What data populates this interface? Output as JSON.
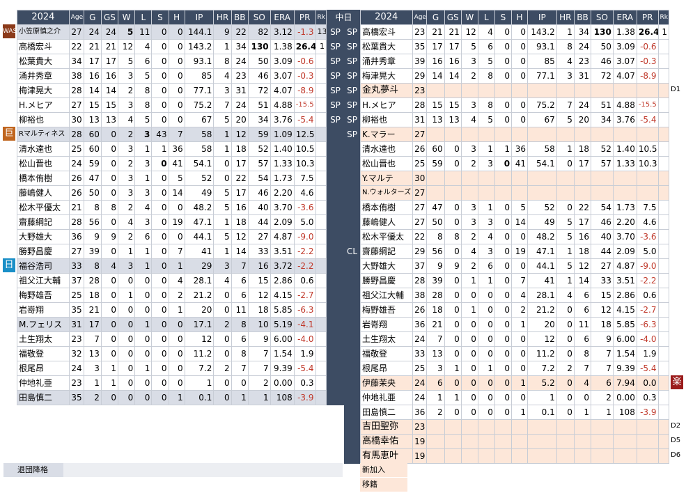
{
  "left": {
    "title": "2024",
    "headers": [
      "Age",
      "G",
      "GS",
      "W",
      "L",
      "S",
      "H",
      "IP",
      "HR",
      "BB",
      "SO",
      "ERA",
      "PR",
      "Rk"
    ],
    "rows": [
      {
        "name": "小笠原慎之介",
        "vals": [
          "27",
          "24",
          "24",
          "5",
          "11",
          "0",
          "0",
          "144.1",
          "9",
          "22",
          "82",
          "3.12",
          "-1.3",
          "13"
        ],
        "style": "grey",
        "bold": [
          4
        ],
        "neg": true,
        "small": true
      },
      {
        "name": "高橋宏斗",
        "vals": [
          "22",
          "21",
          "21",
          "12",
          "4",
          "0",
          "0",
          "143.2",
          "1",
          "34",
          "130",
          "1.38",
          "26.4",
          "1"
        ],
        "style": "",
        "bold": [
          11,
          13
        ]
      },
      {
        "name": "松葉貴大",
        "vals": [
          "34",
          "17",
          "17",
          "5",
          "6",
          "0",
          "0",
          "93.1",
          "8",
          "24",
          "50",
          "3.09",
          "-0.6",
          ""
        ],
        "style": "",
        "neg": true
      },
      {
        "name": "涌井秀章",
        "vals": [
          "38",
          "16",
          "16",
          "3",
          "5",
          "0",
          "0",
          "85",
          "4",
          "23",
          "46",
          "3.07",
          "-0.3",
          ""
        ],
        "style": "",
        "neg": true
      },
      {
        "name": "梅津晃大",
        "vals": [
          "28",
          "14",
          "14",
          "2",
          "8",
          "0",
          "0",
          "77.1",
          "3",
          "31",
          "72",
          "4.07",
          "-8.9",
          ""
        ],
        "style": "",
        "neg": true
      },
      {
        "name": "H.メヒア",
        "vals": [
          "27",
          "15",
          "15",
          "3",
          "8",
          "0",
          "0",
          "75.2",
          "7",
          "24",
          "51",
          "4.88",
          "-15.5",
          ""
        ],
        "style": "",
        "neg": true,
        "smallpr": true
      },
      {
        "name": "柳裕也",
        "vals": [
          "30",
          "13",
          "13",
          "4",
          "5",
          "0",
          "0",
          "67",
          "5",
          "20",
          "34",
          "3.76",
          "-5.4",
          ""
        ],
        "style": "",
        "neg": true
      },
      {
        "name": "Rマルティネス",
        "vals": [
          "28",
          "60",
          "0",
          "2",
          "3",
          "43",
          "7",
          "58",
          "1",
          "12",
          "59",
          "1.09",
          "12.5",
          ""
        ],
        "style": "grey",
        "bold": [
          5
        ],
        "small": true
      },
      {
        "name": "清水達也",
        "vals": [
          "25",
          "60",
          "0",
          "3",
          "1",
          "1",
          "36",
          "58",
          "1",
          "18",
          "52",
          "1.40",
          "10.5",
          ""
        ],
        "style": ""
      },
      {
        "name": "松山晋也",
        "vals": [
          "24",
          "59",
          "0",
          "2",
          "3",
          "0",
          "41",
          "54.1",
          "0",
          "17",
          "57",
          "1.33",
          "10.3",
          ""
        ],
        "style": "",
        "bold": [
          6
        ]
      },
      {
        "name": "橋本侑樹",
        "vals": [
          "26",
          "47",
          "0",
          "3",
          "1",
          "0",
          "5",
          "52",
          "0",
          "22",
          "54",
          "1.73",
          "7.5",
          ""
        ],
        "style": ""
      },
      {
        "name": "藤嶋健人",
        "vals": [
          "26",
          "50",
          "0",
          "3",
          "3",
          "0",
          "14",
          "49",
          "5",
          "17",
          "46",
          "2.20",
          "4.6",
          ""
        ],
        "style": ""
      },
      {
        "name": "松木平優太",
        "vals": [
          "21",
          "8",
          "8",
          "2",
          "4",
          "0",
          "0",
          "48.2",
          "5",
          "16",
          "40",
          "3.70",
          "-3.6",
          ""
        ],
        "style": "",
        "neg": true
      },
      {
        "name": "齋藤綱記",
        "vals": [
          "28",
          "56",
          "0",
          "4",
          "3",
          "0",
          "19",
          "47.1",
          "1",
          "18",
          "44",
          "2.09",
          "5.0",
          ""
        ],
        "style": ""
      },
      {
        "name": "大野雄大",
        "vals": [
          "36",
          "9",
          "9",
          "2",
          "6",
          "0",
          "0",
          "44.1",
          "5",
          "12",
          "27",
          "4.87",
          "-9.0",
          ""
        ],
        "style": "",
        "neg": true
      },
      {
        "name": "勝野昌慶",
        "vals": [
          "27",
          "39",
          "0",
          "1",
          "1",
          "0",
          "7",
          "41",
          "1",
          "14",
          "33",
          "3.51",
          "-2.2",
          ""
        ],
        "style": "",
        "neg": true
      },
      {
        "name": "福谷浩司",
        "vals": [
          "33",
          "8",
          "4",
          "3",
          "1",
          "0",
          "1",
          "29",
          "3",
          "7",
          "16",
          "3.72",
          "-2.2",
          ""
        ],
        "style": "grey",
        "neg": true
      },
      {
        "name": "祖父江大輔",
        "vals": [
          "37",
          "28",
          "0",
          "0",
          "0",
          "0",
          "4",
          "28.1",
          "4",
          "6",
          "15",
          "2.86",
          "0.6",
          ""
        ],
        "style": ""
      },
      {
        "name": "梅野雄吾",
        "vals": [
          "25",
          "18",
          "0",
          "1",
          "0",
          "0",
          "2",
          "21.2",
          "0",
          "6",
          "12",
          "4.15",
          "-2.7",
          ""
        ],
        "style": "",
        "neg": true
      },
      {
        "name": "岩嵜翔",
        "vals": [
          "35",
          "21",
          "0",
          "0",
          "0",
          "0",
          "1",
          "20",
          "0",
          "11",
          "18",
          "5.85",
          "-6.3",
          ""
        ],
        "style": "",
        "neg": true
      },
      {
        "name": "M.フェリス",
        "vals": [
          "31",
          "17",
          "0",
          "0",
          "1",
          "0",
          "0",
          "17.1",
          "2",
          "8",
          "10",
          "5.19",
          "-4.1",
          ""
        ],
        "style": "grey",
        "neg": true
      },
      {
        "name": "土生翔太",
        "vals": [
          "23",
          "7",
          "0",
          "0",
          "0",
          "0",
          "0",
          "12",
          "0",
          "6",
          "9",
          "6.00",
          "-4.0",
          ""
        ],
        "style": "",
        "neg": true
      },
      {
        "name": "福敬登",
        "vals": [
          "32",
          "13",
          "0",
          "0",
          "0",
          "0",
          "0",
          "11.2",
          "0",
          "8",
          "7",
          "1.54",
          "1.9",
          ""
        ],
        "style": ""
      },
      {
        "name": "根尾昂",
        "vals": [
          "24",
          "3",
          "1",
          "0",
          "1",
          "0",
          "0",
          "7.2",
          "2",
          "7",
          "7",
          "9.39",
          "-5.4",
          ""
        ],
        "style": "",
        "neg": true
      },
      {
        "name": "仲地礼亜",
        "vals": [
          "23",
          "1",
          "1",
          "0",
          "0",
          "0",
          "0",
          "1",
          "0",
          "0",
          "2",
          "0.00",
          "0.3",
          ""
        ],
        "style": ""
      },
      {
        "name": "田島慎二",
        "vals": [
          "35",
          "2",
          "0",
          "0",
          "0",
          "0",
          "1",
          "0.1",
          "0",
          "1",
          "1",
          "108",
          "-3.9",
          ""
        ],
        "style": "grey",
        "neg": true
      }
    ]
  },
  "mid": {
    "title": "中日",
    "cells": [
      "SP",
      "SP",
      "SP",
      "SP",
      "SP",
      "SP",
      "SP",
      "SP",
      "",
      "",
      "",
      "",
      "",
      "",
      "",
      "CL",
      "",
      "",
      "",
      "",
      "",
      "",
      "",
      "",
      "",
      "",
      "",
      "",
      "",
      ""
    ],
    "lefts": [
      "SP",
      "SP",
      "SP",
      "SP",
      "SP",
      "SP",
      "SP",
      "",
      "",
      "",
      "",
      "",
      "",
      "",
      "",
      "",
      "",
      "",
      "",
      "",
      "",
      "",
      "",
      "",
      "",
      "",
      "",
      "",
      "",
      ""
    ]
  },
  "right": {
    "title": "2024",
    "headers": [
      "Age",
      "G",
      "GS",
      "W",
      "L",
      "S",
      "H",
      "IP",
      "HR",
      "BB",
      "SO",
      "ERA",
      "PR",
      "Rk"
    ],
    "rows": [
      {
        "name": "高橋宏斗",
        "vals": [
          "23",
          "21",
          "21",
          "12",
          "4",
          "0",
          "0",
          "143.2",
          "1",
          "34",
          "130",
          "1.38",
          "26.4",
          "1"
        ],
        "style": "",
        "bold": [
          11,
          13
        ]
      },
      {
        "name": "松葉貴大",
        "vals": [
          "35",
          "17",
          "17",
          "5",
          "6",
          "0",
          "0",
          "93.1",
          "8",
          "24",
          "50",
          "3.09",
          "-0.6",
          ""
        ],
        "style": "",
        "neg": true
      },
      {
        "name": "涌井秀章",
        "vals": [
          "39",
          "16",
          "16",
          "3",
          "5",
          "0",
          "0",
          "85",
          "4",
          "23",
          "46",
          "3.07",
          "-0.3",
          ""
        ],
        "style": "",
        "neg": true
      },
      {
        "name": "梅津晃大",
        "vals": [
          "29",
          "14",
          "14",
          "2",
          "8",
          "0",
          "0",
          "77.1",
          "3",
          "31",
          "72",
          "4.07",
          "-8.9",
          ""
        ],
        "style": "",
        "neg": true
      },
      {
        "name": "金丸夢斗",
        "vals": [
          "23",
          "",
          "",
          "",
          "",
          "",
          "",
          "",
          "",
          "",
          "",
          "",
          "",
          ""
        ],
        "style": "peachy",
        "tag": "D1"
      },
      {
        "name": "H.メヒア",
        "vals": [
          "28",
          "15",
          "15",
          "3",
          "8",
          "0",
          "0",
          "75.2",
          "7",
          "24",
          "51",
          "4.88",
          "-15.5",
          ""
        ],
        "style": "",
        "neg": true,
        "smallpr": true
      },
      {
        "name": "柳裕也",
        "vals": [
          "31",
          "13",
          "13",
          "4",
          "5",
          "0",
          "0",
          "67",
          "5",
          "20",
          "34",
          "3.76",
          "-5.4",
          ""
        ],
        "style": "",
        "neg": true
      },
      {
        "name": "K.マラー",
        "vals": [
          "27",
          "",
          "",
          "",
          "",
          "",
          "",
          "",
          "",
          "",
          "",
          "",
          "",
          ""
        ],
        "style": "peach"
      },
      {
        "name": "清水達也",
        "vals": [
          "26",
          "60",
          "0",
          "3",
          "1",
          "1",
          "36",
          "58",
          "1",
          "18",
          "52",
          "1.40",
          "10.5",
          ""
        ],
        "style": ""
      },
      {
        "name": "松山晋也",
        "vals": [
          "25",
          "59",
          "0",
          "2",
          "3",
          "0",
          "41",
          "54.1",
          "0",
          "17",
          "57",
          "1.33",
          "10.3",
          ""
        ],
        "style": "",
        "bold": [
          6
        ]
      },
      {
        "name": "Y.マルテ",
        "vals": [
          "30",
          "",
          "",
          "",
          "",
          "",
          "",
          "",
          "",
          "",
          "",
          "",
          "",
          ""
        ],
        "style": "peach"
      },
      {
        "name": "N.ウォルターズ",
        "vals": [
          "27",
          "",
          "",
          "",
          "",
          "",
          "",
          "",
          "",
          "",
          "",
          "",
          "",
          ""
        ],
        "style": "peach",
        "small": true
      },
      {
        "name": "橋本侑樹",
        "vals": [
          "27",
          "47",
          "0",
          "3",
          "1",
          "0",
          "5",
          "52",
          "0",
          "22",
          "54",
          "1.73",
          "7.5",
          ""
        ],
        "style": ""
      },
      {
        "name": "藤嶋健人",
        "vals": [
          "27",
          "50",
          "0",
          "3",
          "3",
          "0",
          "14",
          "49",
          "5",
          "17",
          "46",
          "2.20",
          "4.6",
          ""
        ],
        "style": ""
      },
      {
        "name": "松木平優太",
        "vals": [
          "22",
          "8",
          "8",
          "2",
          "4",
          "0",
          "0",
          "48.2",
          "5",
          "16",
          "40",
          "3.70",
          "-3.6",
          ""
        ],
        "style": "",
        "neg": true
      },
      {
        "name": "齋藤綱記",
        "vals": [
          "29",
          "56",
          "0",
          "4",
          "3",
          "0",
          "19",
          "47.1",
          "1",
          "18",
          "44",
          "2.09",
          "5.0",
          ""
        ],
        "style": ""
      },
      {
        "name": "大野雄大",
        "vals": [
          "37",
          "9",
          "9",
          "2",
          "6",
          "0",
          "0",
          "44.1",
          "5",
          "12",
          "27",
          "4.87",
          "-9.0",
          ""
        ],
        "style": "",
        "neg": true
      },
      {
        "name": "勝野昌慶",
        "vals": [
          "28",
          "39",
          "0",
          "1",
          "1",
          "0",
          "7",
          "41",
          "1",
          "14",
          "33",
          "3.51",
          "-2.2",
          ""
        ],
        "style": "",
        "neg": true
      },
      {
        "name": "祖父江大輔",
        "vals": [
          "38",
          "28",
          "0",
          "0",
          "0",
          "0",
          "4",
          "28.1",
          "4",
          "6",
          "15",
          "2.86",
          "0.6",
          ""
        ],
        "style": ""
      },
      {
        "name": "梅野雄吾",
        "vals": [
          "26",
          "18",
          "0",
          "1",
          "0",
          "0",
          "2",
          "21.2",
          "0",
          "6",
          "12",
          "4.15",
          "-2.7",
          ""
        ],
        "style": "",
        "neg": true
      },
      {
        "name": "岩嵜翔",
        "vals": [
          "36",
          "21",
          "0",
          "0",
          "0",
          "0",
          "1",
          "20",
          "0",
          "11",
          "18",
          "5.85",
          "-6.3",
          ""
        ],
        "style": "",
        "neg": true
      },
      {
        "name": "土生翔太",
        "vals": [
          "24",
          "7",
          "0",
          "0",
          "0",
          "0",
          "0",
          "12",
          "0",
          "6",
          "9",
          "6.00",
          "-4.0",
          ""
        ],
        "style": "",
        "neg": true
      },
      {
        "name": "福敬登",
        "vals": [
          "33",
          "13",
          "0",
          "0",
          "0",
          "0",
          "0",
          "11.2",
          "0",
          "8",
          "7",
          "1.54",
          "1.9",
          ""
        ],
        "style": ""
      },
      {
        "name": "根尾昂",
        "vals": [
          "25",
          "3",
          "1",
          "0",
          "1",
          "0",
          "0",
          "7.2",
          "2",
          "7",
          "7",
          "9.39",
          "-5.4",
          ""
        ],
        "style": "",
        "neg": true
      },
      {
        "name": "伊藤茉央",
        "vals": [
          "24",
          "6",
          "0",
          "0",
          "0",
          "0",
          "1",
          "5.2",
          "0",
          "4",
          "6",
          "7.94",
          "0.0",
          ""
        ],
        "style": "peach"
      },
      {
        "name": "仲地礼亜",
        "vals": [
          "24",
          "1",
          "1",
          "0",
          "0",
          "0",
          "0",
          "1",
          "0",
          "0",
          "2",
          "0.00",
          "0.3",
          ""
        ],
        "style": ""
      },
      {
        "name": "田島慎二",
        "vals": [
          "36",
          "2",
          "0",
          "0",
          "0",
          "0",
          "1",
          "0.1",
          "0",
          "1",
          "1",
          "108",
          "-3.9",
          ""
        ],
        "style": "",
        "neg": true
      },
      {
        "name": "吉田聖弥",
        "vals": [
          "23",
          "",
          "",
          "",
          "",
          "",
          "",
          "",
          "",
          "",
          "",
          "",
          "",
          ""
        ],
        "style": "peachy",
        "tag": "D2"
      },
      {
        "name": "高橋幸佑",
        "vals": [
          "19",
          "",
          "",
          "",
          "",
          "",
          "",
          "",
          "",
          "",
          "",
          "",
          "",
          ""
        ],
        "style": "peachy",
        "tag": "D5"
      },
      {
        "name": "有馬恵叶",
        "vals": [
          "19",
          "",
          "",
          "",
          "",
          "",
          "",
          "",
          "",
          "",
          "",
          "",
          "",
          ""
        ],
        "style": "peachy",
        "tag": "D6"
      }
    ]
  },
  "badges": [
    {
      "text": "WAS",
      "color": "#8b3a1a",
      "row": 0
    },
    {
      "text": "巨",
      "color": "#c0651e",
      "row": 7
    },
    {
      "text": "日",
      "color": "#1a8fc7",
      "row": 16
    }
  ],
  "right_badge": {
    "text": "楽",
    "color": "#9b1c1c"
  },
  "footer": {
    "retired": "退団降格",
    "new_added": "新加入",
    "transferred": "移籍"
  }
}
